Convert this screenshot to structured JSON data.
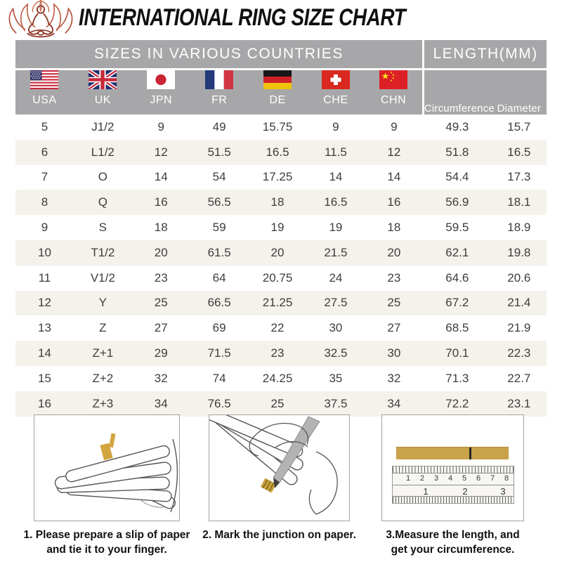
{
  "header": {
    "title": "INTERNATIONAL RING SIZE CHART",
    "logo": "lotus-meditation-logo"
  },
  "table": {
    "group_headers": {
      "countries": "SIZES IN VARIOUS COUNTRIES",
      "length": "LENGTH(MM)"
    },
    "columns": [
      {
        "label": "USA",
        "flag": "usa-flag"
      },
      {
        "label": "UK",
        "flag": "uk-flag"
      },
      {
        "label": "JPN",
        "flag": "japan-flag"
      },
      {
        "label": "FR",
        "flag": "france-flag"
      },
      {
        "label": "DE",
        "flag": "germany-flag"
      },
      {
        "label": "CHE",
        "flag": "switzerland-flag"
      },
      {
        "label": "CHN",
        "flag": "china-flag"
      },
      {
        "label": "Circumference"
      },
      {
        "label": "Diameter"
      }
    ],
    "rows": [
      [
        "5",
        "J1/2",
        "9",
        "49",
        "15.75",
        "9",
        "9",
        "49.3",
        "15.7"
      ],
      [
        "6",
        "L1/2",
        "12",
        "51.5",
        "16.5",
        "11.5",
        "12",
        "51.8",
        "16.5"
      ],
      [
        "7",
        "O",
        "14",
        "54",
        "17.25",
        "14",
        "14",
        "54.4",
        "17.3"
      ],
      [
        "8",
        "Q",
        "16",
        "56.5",
        "18",
        "16.5",
        "16",
        "56.9",
        "18.1"
      ],
      [
        "9",
        "S",
        "18",
        "59",
        "19",
        "19",
        "18",
        "59.5",
        "18.9"
      ],
      [
        "10",
        "T1/2",
        "20",
        "61.5",
        "20",
        "21.5",
        "20",
        "62.1",
        "19.8"
      ],
      [
        "11",
        "V1/2",
        "23",
        "64",
        "20.75",
        "24",
        "23",
        "64.6",
        "20.6"
      ],
      [
        "12",
        "Y",
        "25",
        "66.5",
        "21.25",
        "27.5",
        "25",
        "67.2",
        "21.4"
      ],
      [
        "13",
        "Z",
        "27",
        "69",
        "22",
        "30",
        "27",
        "68.5",
        "21.9"
      ],
      [
        "14",
        "Z+1",
        "29",
        "71.5",
        "23",
        "32.5",
        "30",
        "70.1",
        "22.3"
      ],
      [
        "15",
        "Z+2",
        "32",
        "74",
        "24.25",
        "35",
        "32",
        "71.3",
        "22.7"
      ],
      [
        "16",
        "Z+3",
        "34",
        "76.5",
        "25",
        "37.5",
        "34",
        "72.2",
        "23.1"
      ]
    ]
  },
  "instructions": [
    {
      "line1": "1. Please prepare a slip of paper",
      "line2": "and tie it to your finger.",
      "illustration": "hand-with-paper-strip"
    },
    {
      "line1": "2. Mark the junction on paper.",
      "line2": "",
      "illustration": "marking-junction-with-pen"
    },
    {
      "line1": "3.Measure the length, and",
      "line2": "get your circumference.",
      "illustration": "ruler-measuring-strip"
    }
  ],
  "ruler": {
    "top_numbers": [
      "1",
      "2",
      "3",
      "4",
      "5",
      "6",
      "7",
      "8"
    ],
    "bottom_numbers": [
      "1",
      "2",
      "3"
    ]
  },
  "colors": {
    "header_gray": "#a7a7a9",
    "row_alt_beige": "#f5f1eb",
    "paper_gold": "#c9a24a",
    "logo_red": "#a43f2b"
  }
}
